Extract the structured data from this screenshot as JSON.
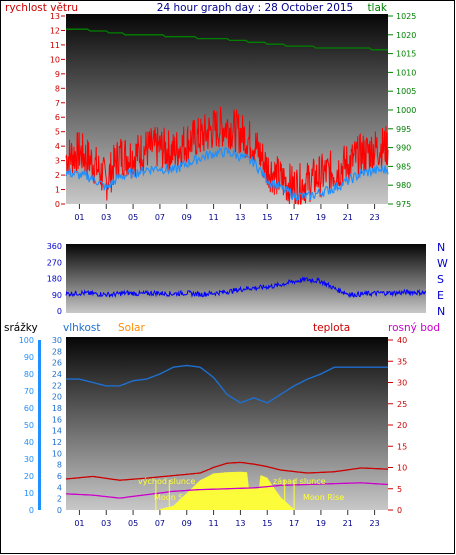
{
  "chart_data": [
    {
      "type": "line",
      "panel": "wind-pressure",
      "title": "24 hour graph day : 28 October 2015",
      "left_axis_label": "rychlost větru",
      "right_axis_label": "tlak",
      "left_ylim": [
        0,
        13
      ],
      "left_ticks": [
        "0",
        "1",
        "2",
        "3",
        "4",
        "5",
        "6",
        "7",
        "8",
        "9",
        "10",
        "11",
        "12",
        "13"
      ],
      "right_ylim": [
        975,
        1025
      ],
      "right_ticks": [
        "975",
        "980",
        "985",
        "990",
        "995",
        "1000",
        "1005",
        "1010",
        "1015",
        "1020",
        "1025"
      ],
      "x_ticks": [
        "01",
        "03",
        "05",
        "07",
        "09",
        "11",
        "13",
        "15",
        "17",
        "19",
        "21",
        "23"
      ],
      "grid": false,
      "colors": {
        "gust": "#ff0000",
        "average": "#1e90ff",
        "pressure": "#008000",
        "left_axis": "#cc0000",
        "right_axis": "#008000"
      },
      "series": [
        {
          "role": "gust",
          "x": [
            0,
            1,
            2,
            3,
            4,
            5,
            6,
            7,
            8,
            9,
            10,
            11,
            12,
            13,
            14,
            15,
            16,
            17,
            18,
            19,
            20,
            21,
            22,
            23,
            24
          ],
          "values": [
            3.2,
            3.6,
            2.9,
            1.6,
            3.4,
            3.3,
            3.8,
            3.9,
            3.6,
            4.3,
            4.6,
            5.2,
            5.4,
            4.9,
            4.2,
            2.5,
            1.7,
            1.2,
            1.5,
            2.0,
            2.3,
            2.8,
            3.4,
            3.8,
            4.0
          ]
        },
        {
          "role": "average",
          "x": [
            0,
            1,
            2,
            3,
            4,
            5,
            6,
            7,
            8,
            9,
            10,
            11,
            12,
            13,
            14,
            15,
            16,
            17,
            18,
            19,
            20,
            21,
            22,
            23,
            24
          ],
          "values": [
            2.2,
            2.0,
            1.8,
            1.1,
            1.9,
            2.1,
            2.4,
            2.5,
            2.3,
            2.8,
            3.2,
            3.5,
            3.6,
            3.3,
            2.9,
            1.7,
            1.1,
            0.6,
            0.5,
            0.8,
            1.1,
            1.6,
            2.1,
            2.3,
            2.4
          ]
        },
        {
          "role": "pressure",
          "x": [
            0,
            2,
            4,
            6,
            8,
            10,
            12,
            14,
            16,
            18,
            20,
            22,
            24
          ],
          "values": [
            1021.5,
            1021.2,
            1020.3,
            1020.0,
            1019.6,
            1019.2,
            1018.8,
            1018.1,
            1017.3,
            1016.8,
            1016.6,
            1016.4,
            1016.0
          ]
        }
      ]
    },
    {
      "type": "line",
      "panel": "wind-direction",
      "left_ylim": [
        0,
        360
      ],
      "left_ticks": [
        "0",
        "90",
        "180",
        "270",
        "360"
      ],
      "right_labels": [
        "N",
        "W",
        "S",
        "E",
        "N"
      ],
      "grid": false,
      "colors": {
        "direction": "#0000ff",
        "axis": "#0000cc"
      },
      "series": [
        {
          "role": "direction",
          "x": [
            0,
            1,
            2,
            3,
            4,
            5,
            6,
            7,
            8,
            9,
            10,
            11,
            12,
            13,
            14,
            15,
            16,
            17,
            18,
            19,
            20,
            21,
            22,
            23,
            24
          ],
          "values": [
            95,
            100,
            95,
            90,
            100,
            95,
            100,
            95,
            100,
            92,
            100,
            110,
            125,
            130,
            140,
            160,
            175,
            165,
            120,
            90,
            95,
            100,
            100,
            105,
            100
          ]
        }
      ]
    },
    {
      "type": "line",
      "panel": "humidity-temp-solar",
      "labels": {
        "rain": "srážky",
        "humidity": "vlhkost",
        "solar": "Solar",
        "temperature": "teplota",
        "dewpoint": "rosný bod"
      },
      "left_outer_ylim": [
        0,
        100
      ],
      "left_outer_ticks": [
        "0",
        "10",
        "20",
        "30",
        "40",
        "50",
        "60",
        "70",
        "80",
        "90",
        "100"
      ],
      "left_inner_ylim": [
        0,
        30
      ],
      "left_inner_ticks": [
        "0",
        "2",
        "4",
        "6",
        "8",
        "10",
        "12",
        "14",
        "16",
        "18",
        "20",
        "22",
        "24",
        "26",
        "28",
        "30"
      ],
      "right_ylim": [
        0,
        40
      ],
      "right_ticks": [
        "0",
        "5",
        "10",
        "15",
        "20",
        "25",
        "30",
        "35",
        "40"
      ],
      "x_ticks": [
        "01",
        "03",
        "05",
        "07",
        "09",
        "11",
        "13",
        "15",
        "17",
        "19",
        "21",
        "23"
      ],
      "annotations": [
        "východ slunce",
        "západ slunce",
        "Moon Set",
        "Moon Rise"
      ],
      "grid": false,
      "colors": {
        "humidity": "#1e6fd0",
        "temperature": "#cc0000",
        "dewpoint": "#cc00cc",
        "solar": "#ffff33",
        "rain_axis": "#1e90ff",
        "solar_label": "#ff8c00",
        "right_axis": "#cc0000"
      },
      "series": [
        {
          "role": "humidity",
          "x": [
            0,
            1,
            2,
            3,
            4,
            5,
            6,
            7,
            8,
            9,
            10,
            11,
            12,
            13,
            14,
            15,
            16,
            17,
            18,
            19,
            20,
            21,
            22,
            23,
            24
          ],
          "values": [
            77,
            77,
            75,
            73,
            73,
            76,
            77,
            80,
            84,
            85,
            84,
            78,
            68,
            63,
            66,
            63,
            68,
            73,
            77,
            80,
            84,
            84,
            84,
            84,
            84
          ]
        },
        {
          "role": "temperature",
          "x": [
            0,
            2,
            4,
            6,
            8,
            10,
            11,
            12,
            13,
            14,
            15,
            16,
            18,
            20,
            22,
            24
          ],
          "values": [
            7.3,
            7.9,
            7.0,
            7.5,
            8.1,
            8.7,
            10.0,
            11.0,
            11.2,
            10.8,
            10.2,
            9.4,
            8.7,
            9.0,
            9.9,
            9.6
          ]
        },
        {
          "role": "dewpoint",
          "x": [
            0,
            2,
            4,
            6,
            8,
            10,
            12,
            14,
            16,
            18,
            20,
            22,
            24
          ],
          "values": [
            3.8,
            3.5,
            2.8,
            3.6,
            4.4,
            4.8,
            5.0,
            5.2,
            5.8,
            6.0,
            6.2,
            6.4,
            6.0
          ]
        },
        {
          "role": "solar",
          "x": [
            7,
            8,
            9,
            10,
            11,
            12,
            13,
            14,
            15,
            16,
            17
          ],
          "values": [
            0.2,
            1.0,
            4.0,
            7.0,
            8.6,
            8.9,
            9.0,
            8.8,
            7.6,
            3.0,
            0.2
          ]
        }
      ]
    }
  ]
}
